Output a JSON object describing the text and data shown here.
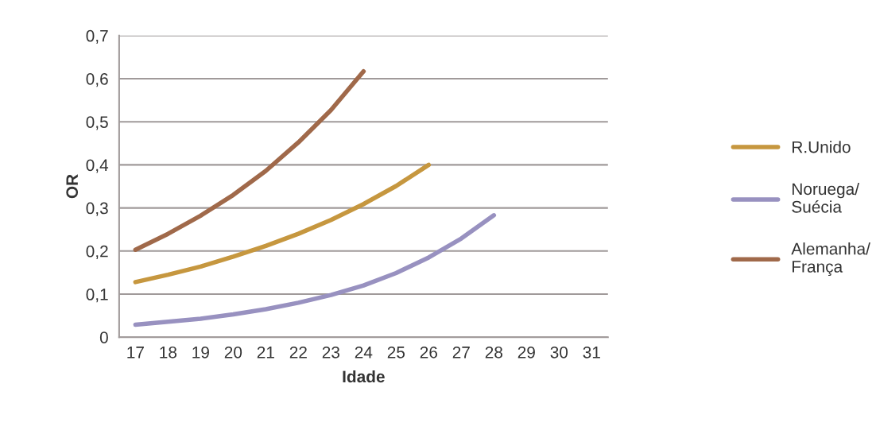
{
  "chart_data": {
    "type": "line",
    "xlabel": "Idade",
    "ylabel": "OR",
    "categories": [
      "17",
      "18",
      "19",
      "20",
      "21",
      "22",
      "23",
      "24",
      "25",
      "26",
      "27",
      "28",
      "29",
      "30",
      "31"
    ],
    "series": [
      {
        "name": "R.Unido",
        "color": "#c6973f",
        "values": [
          0.128,
          0.145,
          0.164,
          0.187,
          0.212,
          0.24,
          0.272,
          0.309,
          0.351,
          0.4,
          null,
          null,
          null,
          null,
          null
        ]
      },
      {
        "name": "Noruega/\nSuécia",
        "color": "#9891c0",
        "values": [
          0.029,
          0.036,
          0.043,
          0.053,
          0.065,
          0.08,
          0.098,
          0.12,
          0.149,
          0.185,
          0.229,
          0.283,
          null,
          null,
          null
        ]
      },
      {
        "name": "Alemanha/\nFrança",
        "color": "#a0694a",
        "values": [
          0.203,
          0.24,
          0.282,
          0.33,
          0.386,
          0.452,
          0.527,
          0.617,
          null,
          null,
          null,
          null,
          null,
          null,
          null
        ]
      }
    ],
    "ylim": [
      0,
      0.7
    ],
    "yticks": [
      0,
      {
        "value": 0.1,
        "label": "0,1"
      },
      {
        "value": 0.2,
        "label": "0,2"
      },
      {
        "value": 0.3,
        "label": "0,3"
      },
      {
        "value": 0.4,
        "label": "0,4"
      },
      {
        "value": 0.5,
        "label": "0,5"
      },
      {
        "value": 0.6,
        "label": "0,6"
      },
      {
        "value": 0.7,
        "label": "0,7"
      }
    ],
    "grid": "y",
    "legend": "right",
    "marker": "none",
    "line_style": "solid"
  }
}
